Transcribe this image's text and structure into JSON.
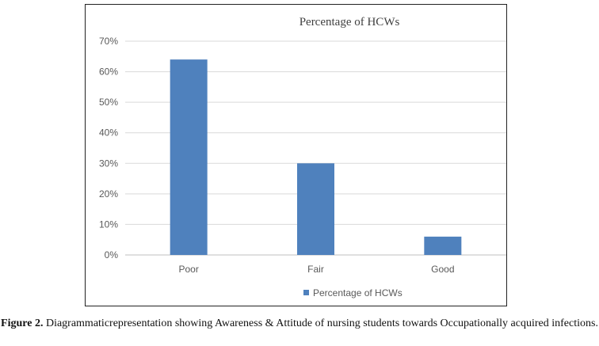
{
  "chart_data": {
    "type": "bar",
    "title": "Percentage of HCWs",
    "categories": [
      "Poor",
      "Fair",
      "Good"
    ],
    "series": [
      {
        "name": "Percentage of HCWs",
        "values": [
          64,
          30,
          6
        ]
      }
    ],
    "ylim": [
      0,
      70
    ],
    "y_ticks": [
      "0%",
      "10%",
      "20%",
      "30%",
      "40%",
      "50%",
      "60%",
      "70%"
    ],
    "grid": true,
    "legend_position": "bottom",
    "bar_color": "#4f81bd"
  },
  "caption": {
    "label": "Figure 2.",
    "text": "Diagrammaticrepresentation showing Awareness & Attitude of nursing students towards Occupationally acquired infections."
  }
}
